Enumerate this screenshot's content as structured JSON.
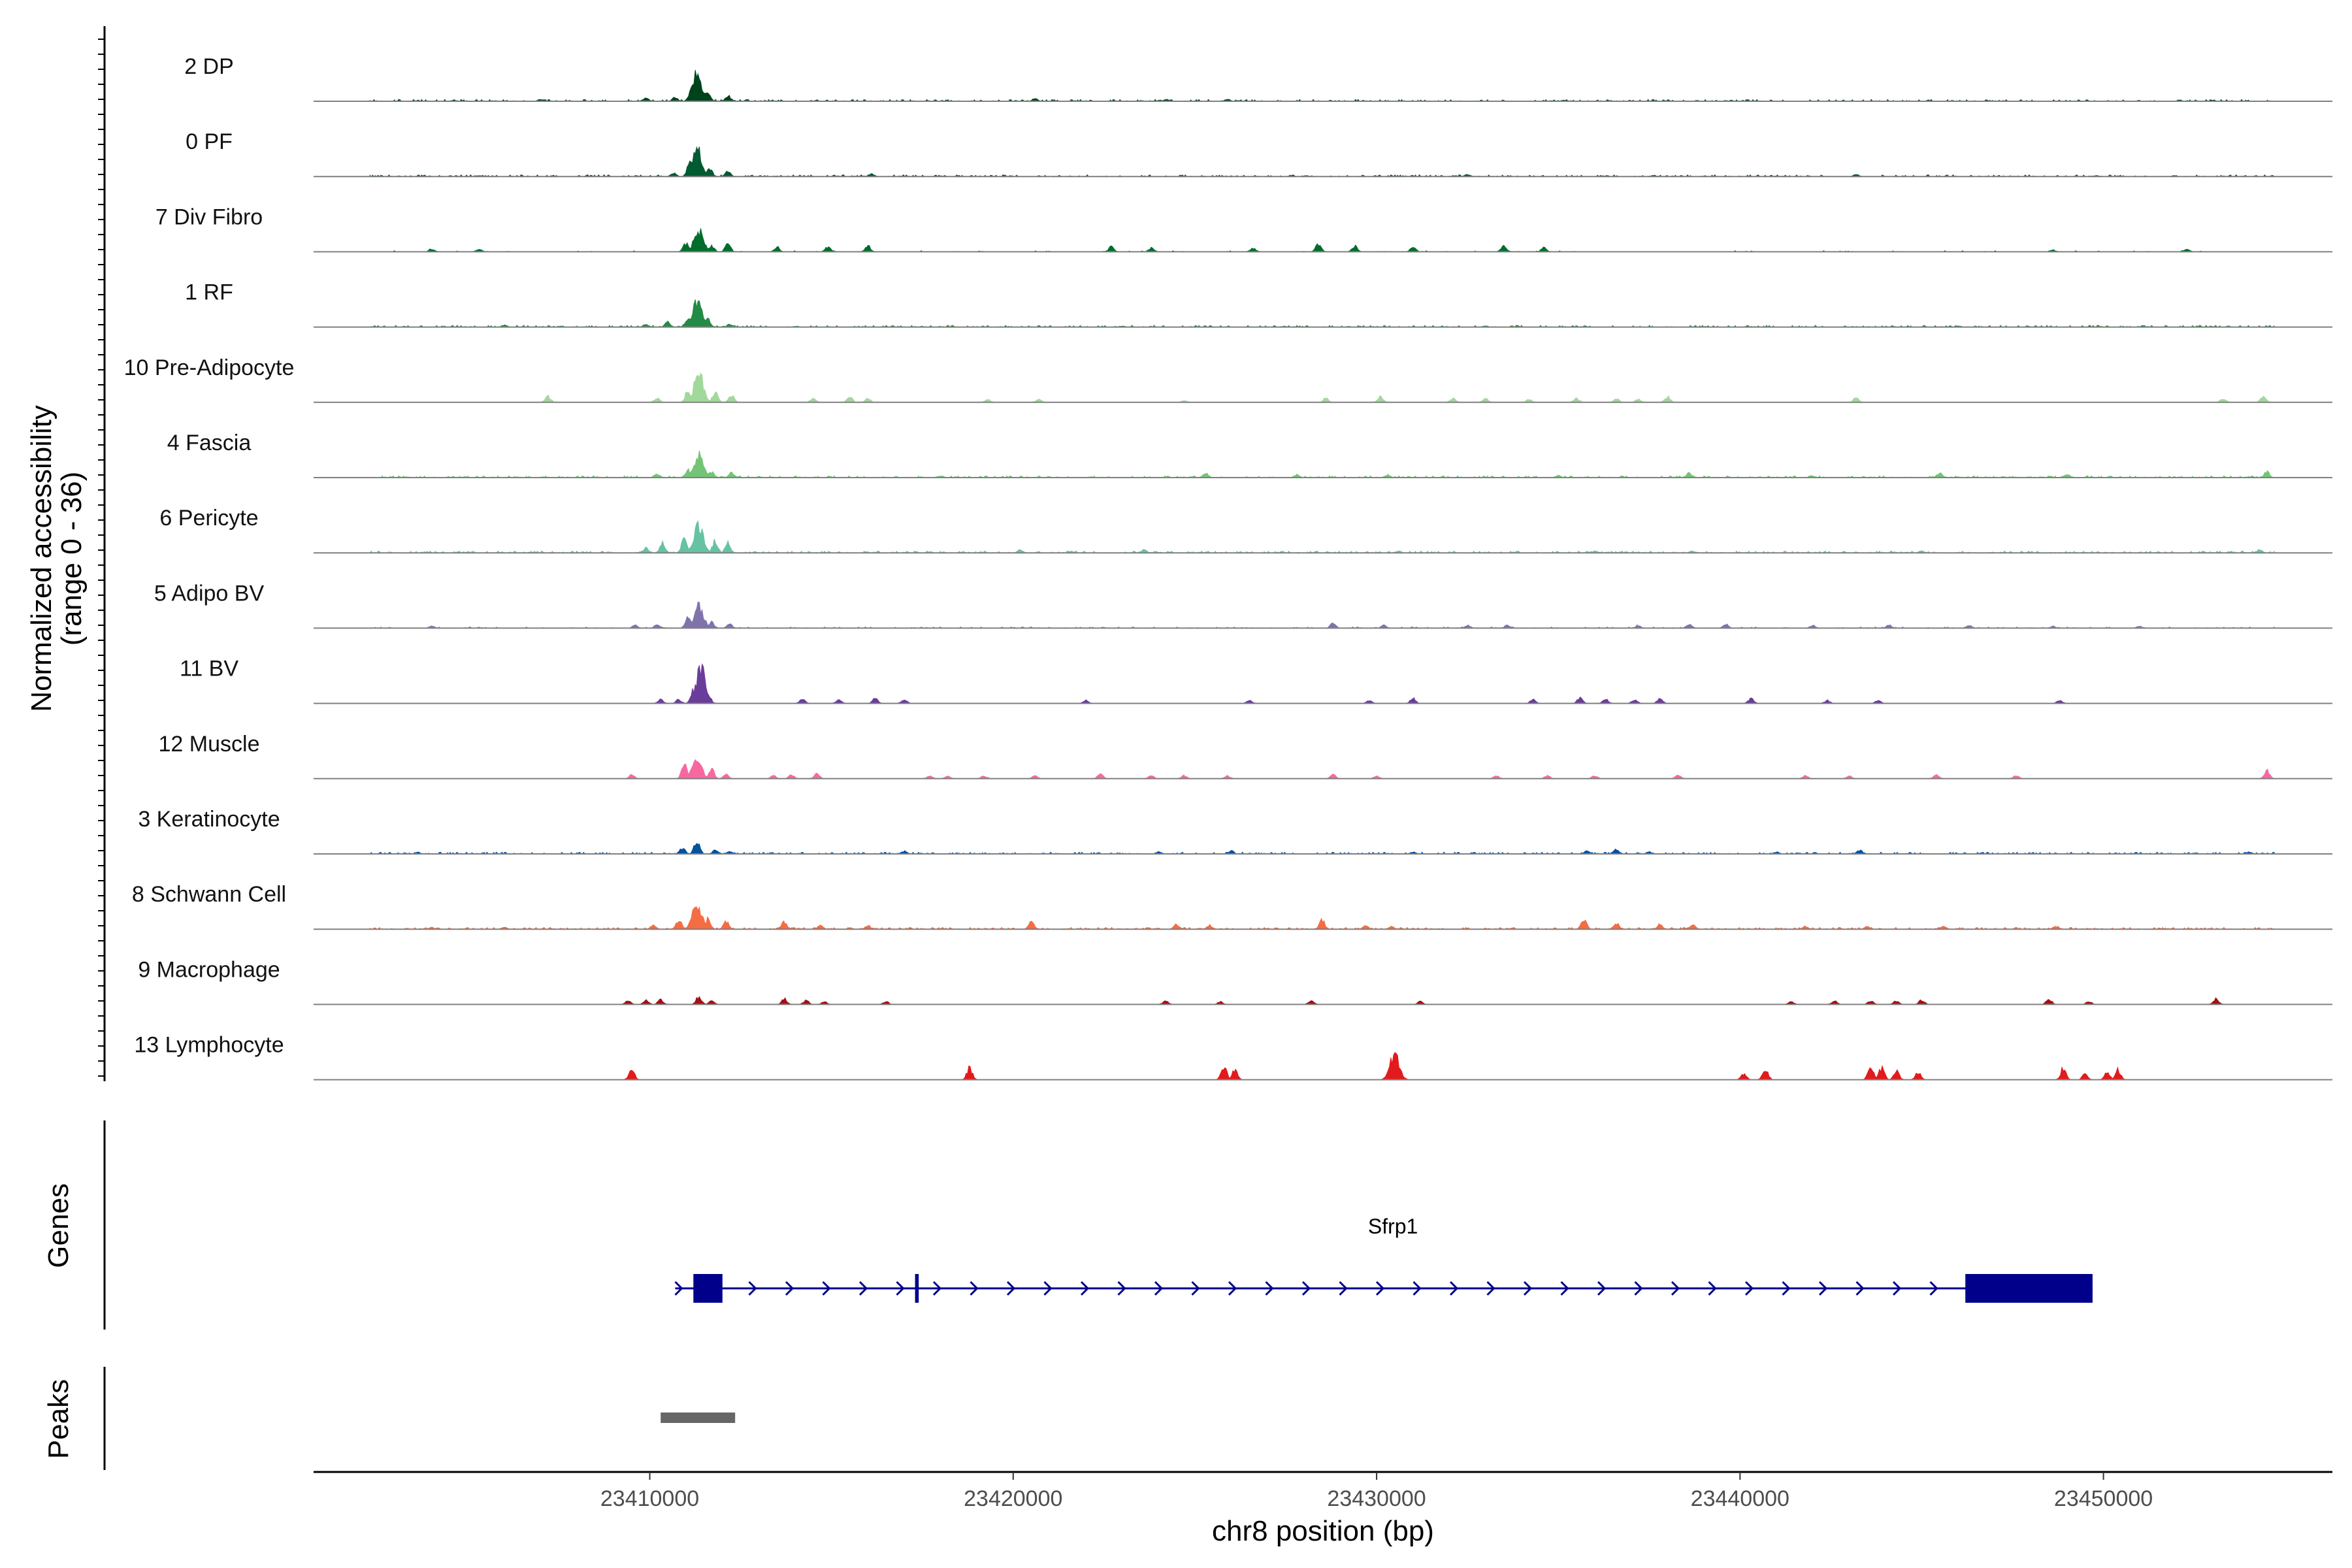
{
  "chart_data": {
    "type": "area",
    "title": "",
    "chromosome": "chr8",
    "xlabel": "chr8 position (bp)",
    "ylabel": "Normalized accessibility",
    "ylabel_range": "(range 0 - 36)",
    "ylim": [
      0,
      36
    ],
    "xlim": [
      23400750,
      23456300
    ],
    "x_ticks": [
      23410000,
      23420000,
      23430000,
      23440000,
      23450000
    ],
    "x_tick_labels": [
      "23410000",
      "23420000",
      "23430000",
      "23440000",
      "23450000"
    ],
    "grid": false,
    "tracks": [
      {
        "name": "2 DP",
        "color": "#00441b",
        "density": "dense",
        "peaks": [
          [
            23411300,
            28
          ],
          [
            23411150,
            12
          ],
          [
            23411600,
            9
          ],
          [
            23412150,
            6
          ],
          [
            23410700,
            4
          ],
          [
            23409900,
            3
          ],
          [
            23420600,
            3
          ],
          [
            23424200,
            2
          ],
          [
            23425900,
            2
          ],
          [
            23407000,
            2
          ],
          [
            23404600,
            1
          ],
          [
            23453000,
            1
          ]
        ]
      },
      {
        "name": "0 PF",
        "color": "#005a32",
        "density": "dense",
        "peaks": [
          [
            23411300,
            30
          ],
          [
            23411100,
            14
          ],
          [
            23411650,
            8
          ],
          [
            23412150,
            5
          ],
          [
            23410650,
            4
          ],
          [
            23416100,
            3
          ],
          [
            23432500,
            2
          ],
          [
            23443200,
            2
          ],
          [
            23437600,
            1
          ],
          [
            23449800,
            1
          ],
          [
            23405300,
            1
          ]
        ]
      },
      {
        "name": "7 Div Fibro",
        "color": "#006d2c",
        "density": "spiky",
        "peaks": [
          [
            23411350,
            22
          ],
          [
            23411000,
            9
          ],
          [
            23412150,
            8
          ],
          [
            23411700,
            6
          ],
          [
            23413500,
            5
          ],
          [
            23414900,
            5
          ],
          [
            23416000,
            6
          ],
          [
            23422700,
            5
          ],
          [
            23428400,
            8
          ],
          [
            23429400,
            6
          ],
          [
            23426600,
            4
          ],
          [
            23423800,
            4
          ],
          [
            23431000,
            5
          ],
          [
            23433500,
            6
          ],
          [
            23434600,
            4
          ],
          [
            23404000,
            3
          ],
          [
            23405300,
            3
          ],
          [
            23452300,
            3
          ],
          [
            23448600,
            2
          ]
        ]
      },
      {
        "name": "1 RF",
        "color": "#238b45",
        "density": "dense",
        "peaks": [
          [
            23411300,
            26
          ],
          [
            23411050,
            10
          ],
          [
            23411600,
            8
          ],
          [
            23410500,
            5
          ],
          [
            23409900,
            3
          ],
          [
            23412200,
            3
          ],
          [
            23406000,
            2
          ],
          [
            23423000,
            1
          ],
          [
            23433000,
            1
          ],
          [
            23446000,
            1
          ]
        ]
      },
      {
        "name": "10 Pre-Adipocyte",
        "color": "#a1d99b",
        "density": "sparse",
        "peaks": [
          [
            23411350,
            30
          ],
          [
            23411050,
            12
          ],
          [
            23411800,
            10
          ],
          [
            23412250,
            8
          ],
          [
            23410200,
            4
          ],
          [
            23407200,
            6
          ],
          [
            23414500,
            4
          ],
          [
            23415500,
            6
          ],
          [
            23416000,
            4
          ],
          [
            23419300,
            3
          ],
          [
            23420700,
            3
          ],
          [
            23430100,
            6
          ],
          [
            23428600,
            4
          ],
          [
            23432100,
            4
          ],
          [
            23433000,
            4
          ],
          [
            23435500,
            4
          ],
          [
            23436600,
            4
          ],
          [
            23438000,
            6
          ],
          [
            23443200,
            5
          ],
          [
            23454400,
            6
          ],
          [
            23453300,
            4
          ],
          [
            23424700,
            2
          ],
          [
            23434200,
            3
          ],
          [
            23437200,
            3
          ]
        ]
      },
      {
        "name": "4 Fascia",
        "color": "#74c476",
        "density": "dense",
        "peaks": [
          [
            23411350,
            24
          ],
          [
            23411050,
            8
          ],
          [
            23411700,
            6
          ],
          [
            23410200,
            4
          ],
          [
            23412250,
            5
          ],
          [
            23425300,
            4
          ],
          [
            23427800,
            3
          ],
          [
            23430300,
            3
          ],
          [
            23438600,
            5
          ],
          [
            23445500,
            5
          ],
          [
            23454500,
            6
          ],
          [
            23449000,
            3
          ],
          [
            23418000,
            2
          ],
          [
            23435000,
            2
          ],
          [
            23442000,
            2
          ]
        ]
      },
      {
        "name": "6 Pericyte",
        "color": "#66c2a4",
        "density": "dense",
        "peaks": [
          [
            23411350,
            28
          ],
          [
            23410950,
            14
          ],
          [
            23410350,
            10
          ],
          [
            23411800,
            12
          ],
          [
            23412150,
            10
          ],
          [
            23409900,
            5
          ],
          [
            23420200,
            3
          ],
          [
            23423600,
            3
          ],
          [
            23430600,
            2
          ],
          [
            23436000,
            2
          ],
          [
            23438700,
            2
          ],
          [
            23445000,
            2
          ],
          [
            23454300,
            3
          ]
        ]
      },
      {
        "name": "5 Adipo BV",
        "color": "#8073ac",
        "density": "medium",
        "peaks": [
          [
            23411350,
            22
          ],
          [
            23411050,
            10
          ],
          [
            23411700,
            6
          ],
          [
            23410200,
            4
          ],
          [
            23412200,
            4
          ],
          [
            23409600,
            3
          ],
          [
            23428800,
            5
          ],
          [
            23430200,
            3
          ],
          [
            23432500,
            3
          ],
          [
            23433600,
            3
          ],
          [
            23437200,
            3
          ],
          [
            23438600,
            4
          ],
          [
            23439600,
            4
          ],
          [
            23442000,
            3
          ],
          [
            23444100,
            3
          ],
          [
            23446300,
            3
          ],
          [
            23404000,
            2
          ],
          [
            23448600,
            2
          ],
          [
            23451000,
            2
          ]
        ]
      },
      {
        "name": "11 BV",
        "color": "#6a3d9a",
        "density": "sparse",
        "peaks": [
          [
            23411400,
            36
          ],
          [
            23411200,
            14
          ],
          [
            23411600,
            10
          ],
          [
            23410300,
            4
          ],
          [
            23410800,
            4
          ],
          [
            23414200,
            4
          ],
          [
            23415200,
            4
          ],
          [
            23416200,
            5
          ],
          [
            23417000,
            4
          ],
          [
            23422000,
            3
          ],
          [
            23426500,
            3
          ],
          [
            23429800,
            3
          ],
          [
            23431000,
            5
          ],
          [
            23434300,
            4
          ],
          [
            23435600,
            6
          ],
          [
            23436300,
            5
          ],
          [
            23437100,
            4
          ],
          [
            23437800,
            5
          ],
          [
            23440300,
            5
          ],
          [
            23442400,
            3
          ],
          [
            23443800,
            3
          ],
          [
            23448800,
            3
          ]
        ]
      },
      {
        "name": "12 Muscle",
        "color": "#f768a1",
        "density": "sparse",
        "peaks": [
          [
            23411300,
            20
          ],
          [
            23410950,
            14
          ],
          [
            23411700,
            10
          ],
          [
            23409500,
            4
          ],
          [
            23412100,
            4
          ],
          [
            23413400,
            3
          ],
          [
            23413900,
            4
          ],
          [
            23414600,
            5
          ],
          [
            23417700,
            3
          ],
          [
            23418200,
            3
          ],
          [
            23419200,
            3
          ],
          [
            23420600,
            3
          ],
          [
            23422400,
            5
          ],
          [
            23423800,
            3
          ],
          [
            23424700,
            3
          ],
          [
            23425900,
            3
          ],
          [
            23428800,
            4
          ],
          [
            23430000,
            3
          ],
          [
            23433300,
            3
          ],
          [
            23434700,
            3
          ],
          [
            23436000,
            3
          ],
          [
            23438300,
            4
          ],
          [
            23441800,
            3
          ],
          [
            23443000,
            3
          ],
          [
            23445400,
            4
          ],
          [
            23447600,
            3
          ],
          [
            23454500,
            8
          ]
        ]
      },
      {
        "name": "3 Keratinocyte",
        "color": "#08519c",
        "density": "dense",
        "peaks": [
          [
            23411300,
            14
          ],
          [
            23410900,
            6
          ],
          [
            23411800,
            4
          ],
          [
            23412200,
            3
          ],
          [
            23403600,
            2
          ],
          [
            23417000,
            3
          ],
          [
            23424000,
            2
          ],
          [
            23426000,
            3
          ],
          [
            23431000,
            2
          ],
          [
            23435800,
            3
          ],
          [
            23436600,
            5
          ],
          [
            23437500,
            2
          ],
          [
            23441000,
            2
          ],
          [
            23443300,
            4
          ],
          [
            23454000,
            2
          ]
        ]
      },
      {
        "name": "8 Schwann Cell",
        "color": "#f46d43",
        "density": "dense",
        "peaks": [
          [
            23411300,
            26
          ],
          [
            23410800,
            10
          ],
          [
            23411600,
            10
          ],
          [
            23412100,
            8
          ],
          [
            23410100,
            4
          ],
          [
            23413700,
            7
          ],
          [
            23414700,
            4
          ],
          [
            23416000,
            4
          ],
          [
            23420500,
            8
          ],
          [
            23424500,
            5
          ],
          [
            23425400,
            4
          ],
          [
            23428500,
            10
          ],
          [
            23429700,
            4
          ],
          [
            23430400,
            3
          ],
          [
            23435700,
            11
          ],
          [
            23436600,
            6
          ],
          [
            23437800,
            5
          ],
          [
            23438700,
            4
          ],
          [
            23441800,
            3
          ],
          [
            23443500,
            3
          ],
          [
            23445600,
            3
          ],
          [
            23448700,
            3
          ],
          [
            23404000,
            2
          ],
          [
            23406000,
            2
          ]
        ]
      },
      {
        "name": "9 Macrophage",
        "color": "#a50f15",
        "density": "sparse",
        "peaks": [
          [
            23409400,
            4
          ],
          [
            23409900,
            4
          ],
          [
            23410300,
            5
          ],
          [
            23411350,
            8
          ],
          [
            23411700,
            4
          ],
          [
            23413700,
            6
          ],
          [
            23414300,
            4
          ],
          [
            23414800,
            3
          ],
          [
            23416500,
            3
          ],
          [
            23424200,
            4
          ],
          [
            23425700,
            3
          ],
          [
            23428200,
            4
          ],
          [
            23431200,
            3
          ],
          [
            23441400,
            3
          ],
          [
            23442600,
            4
          ],
          [
            23443600,
            4
          ],
          [
            23444300,
            4
          ],
          [
            23445000,
            5
          ],
          [
            23448500,
            6
          ],
          [
            23449600,
            3
          ],
          [
            23453100,
            6
          ]
        ]
      },
      {
        "name": "13 Lymphocyte",
        "color": "#e31a1c",
        "density": "sparse",
        "peaks": [
          [
            23409500,
            12
          ],
          [
            23418800,
            12
          ],
          [
            23425800,
            14
          ],
          [
            23426100,
            10
          ],
          [
            23430500,
            26
          ],
          [
            23440100,
            6
          ],
          [
            23440700,
            11
          ],
          [
            23443600,
            15
          ],
          [
            23443900,
            12
          ],
          [
            23444300,
            10
          ],
          [
            23444900,
            8
          ],
          [
            23448900,
            12
          ],
          [
            23449500,
            6
          ],
          [
            23450100,
            8
          ],
          [
            23450400,
            10
          ]
        ]
      }
    ],
    "genes_track": {
      "label": "Genes",
      "gene_name": "Sfrp1",
      "color": "#00008b",
      "tx_start": 23411200,
      "tx_end": 23449700,
      "strand": "+",
      "exons": [
        [
          23411200,
          23412000
        ],
        [
          23417300,
          23417400
        ],
        [
          23446200,
          23449700
        ]
      ]
    },
    "peaks_track": {
      "label": "Peaks",
      "color": "#666666",
      "regions": [
        [
          23410300,
          23412350
        ]
      ]
    }
  }
}
